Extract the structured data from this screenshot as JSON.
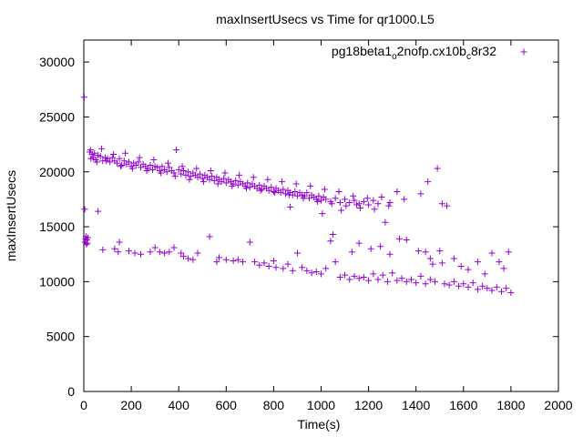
{
  "chart_data": {
    "type": "scatter",
    "title": "maxInsertUsecs vs Time for qr1000.L5",
    "xlabel": "Time(s)",
    "ylabel": "maxInsertUsecs",
    "xlim": [
      0,
      2000
    ],
    "ylim": [
      0,
      32000
    ],
    "x_ticks": [
      0,
      200,
      400,
      600,
      800,
      1000,
      1200,
      1400,
      1600,
      1800,
      2000
    ],
    "x_tick_labels": [
      "0",
      "200",
      "400",
      "600",
      "800",
      "1000",
      "1200",
      "1400",
      "1600",
      "1800",
      "2000"
    ],
    "y_ticks": [
      0,
      5000,
      10000,
      15000,
      20000,
      25000,
      30000
    ],
    "y_tick_labels": [
      "0",
      "5000",
      "10000",
      "15000",
      "20000",
      "25000",
      "30000"
    ],
    "grid": false,
    "legend_position": "top-right",
    "legend": {
      "parts": [
        {
          "text": "pg18beta1",
          "sub": false
        },
        {
          "text": "o",
          "sub": true
        },
        {
          "text": "2nofp.cx10b",
          "sub": false
        },
        {
          "text": "c",
          "sub": true
        },
        {
          "text": "8r32",
          "sub": false
        }
      ]
    },
    "marker": "+",
    "series_color": "#9400d3",
    "series": [
      {
        "name": "pg18beta1_o2nofp.cx10b_c8r32",
        "points": [
          [
            2,
            26800
          ],
          [
            4,
            16600
          ],
          [
            5,
            13600
          ],
          [
            7,
            13900
          ],
          [
            9,
            14100
          ],
          [
            11,
            13400
          ],
          [
            13,
            13800
          ],
          [
            15,
            13500
          ],
          [
            17,
            14000
          ],
          [
            60,
            16400
          ],
          [
            80,
            12900
          ],
          [
            130,
            13000
          ],
          [
            145,
            12700
          ],
          [
            150,
            13600
          ],
          [
            190,
            12800
          ],
          [
            215,
            12600
          ],
          [
            240,
            12500
          ],
          [
            280,
            12700
          ],
          [
            300,
            13100
          ],
          [
            320,
            12700
          ],
          [
            340,
            12600
          ],
          [
            360,
            12700
          ],
          [
            380,
            13100
          ],
          [
            410,
            12600
          ],
          [
            420,
            12300
          ],
          [
            440,
            12100
          ],
          [
            460,
            12000
          ],
          [
            480,
            12600
          ],
          [
            530,
            14100
          ],
          [
            560,
            11800
          ],
          [
            570,
            12200
          ],
          [
            600,
            12000
          ],
          [
            630,
            11900
          ],
          [
            650,
            12000
          ],
          [
            670,
            11800
          ],
          [
            700,
            13600
          ],
          [
            720,
            11800
          ],
          [
            740,
            11500
          ],
          [
            760,
            11700
          ],
          [
            780,
            11400
          ],
          [
            800,
            11900
          ],
          [
            810,
            11300
          ],
          [
            840,
            11200
          ],
          [
            860,
            11600
          ],
          [
            880,
            11000
          ],
          [
            900,
            12600
          ],
          [
            920,
            11300
          ],
          [
            940,
            11000
          ],
          [
            960,
            10800
          ],
          [
            980,
            10900
          ],
          [
            1000,
            10700
          ],
          [
            1020,
            11200
          ],
          [
            1040,
            13700
          ],
          [
            1050,
            14300
          ],
          [
            1060,
            11800
          ],
          [
            1080,
            10400
          ],
          [
            1100,
            10600
          ],
          [
            1120,
            10200
          ],
          [
            1140,
            10500
          ],
          [
            1160,
            10300
          ],
          [
            1180,
            10400
          ],
          [
            1200,
            10100
          ],
          [
            1220,
            10700
          ],
          [
            1240,
            10200
          ],
          [
            1260,
            10600
          ],
          [
            1280,
            10000
          ],
          [
            1300,
            10800
          ],
          [
            1320,
            10100
          ],
          [
            1340,
            10300
          ],
          [
            1360,
            10000
          ],
          [
            1380,
            10200
          ],
          [
            1400,
            9900
          ],
          [
            1420,
            10500
          ],
          [
            1440,
            9800
          ],
          [
            1460,
            10200
          ],
          [
            1480,
            10000
          ],
          [
            1500,
            12800
          ],
          [
            1520,
            9800
          ],
          [
            1540,
            9700
          ],
          [
            1560,
            10000
          ],
          [
            1580,
            9600
          ],
          [
            1600,
            9800
          ],
          [
            1620,
            9500
          ],
          [
            1640,
            9900
          ],
          [
            1660,
            9300
          ],
          [
            1680,
            9600
          ],
          [
            1700,
            9400
          ],
          [
            1720,
            9200
          ],
          [
            1740,
            9500
          ],
          [
            1760,
            9100
          ],
          [
            1780,
            9400
          ],
          [
            1800,
            9000
          ],
          [
            1130,
            12700
          ],
          [
            1160,
            13500
          ],
          [
            1210,
            13000
          ],
          [
            1250,
            13200
          ],
          [
            1290,
            12500
          ],
          [
            1330,
            13900
          ],
          [
            1360,
            13800
          ],
          [
            1410,
            12800
          ],
          [
            1440,
            12700
          ],
          [
            1460,
            12100
          ],
          [
            1470,
            11600
          ],
          [
            1510,
            11700
          ],
          [
            1560,
            12100
          ],
          [
            1590,
            11400
          ],
          [
            1620,
            11100
          ],
          [
            1660,
            11800
          ],
          [
            1690,
            10700
          ],
          [
            1720,
            12600
          ],
          [
            1750,
            11800
          ],
          [
            1770,
            11200
          ],
          [
            1790,
            12700
          ],
          [
            25,
            21800
          ],
          [
            30,
            21200
          ],
          [
            35,
            21600
          ],
          [
            40,
            21300
          ],
          [
            45,
            21700
          ],
          [
            50,
            21100
          ],
          [
            60,
            21500
          ],
          [
            70,
            21400
          ],
          [
            80,
            21000
          ],
          [
            90,
            21300
          ],
          [
            100,
            21200
          ],
          [
            110,
            20900
          ],
          [
            120,
            21300
          ],
          [
            130,
            21000
          ],
          [
            140,
            20800
          ],
          [
            150,
            21200
          ],
          [
            160,
            20600
          ],
          [
            170,
            21000
          ],
          [
            180,
            20700
          ],
          [
            190,
            20900
          ],
          [
            200,
            20500
          ],
          [
            210,
            20800
          ],
          [
            220,
            20600
          ],
          [
            230,
            20900
          ],
          [
            240,
            20400
          ],
          [
            250,
            20700
          ],
          [
            260,
            20500
          ],
          [
            270,
            20300
          ],
          [
            280,
            20600
          ],
          [
            290,
            20200
          ],
          [
            300,
            20500
          ],
          [
            310,
            20400
          ],
          [
            320,
            20100
          ],
          [
            330,
            20500
          ],
          [
            340,
            20200
          ],
          [
            350,
            20000
          ],
          [
            360,
            20400
          ],
          [
            370,
            20100
          ],
          [
            380,
            19900
          ],
          [
            390,
            22000
          ],
          [
            400,
            20200
          ],
          [
            410,
            19800
          ],
          [
            420,
            20100
          ],
          [
            430,
            19700
          ],
          [
            440,
            20000
          ],
          [
            450,
            19600
          ],
          [
            460,
            19900
          ],
          [
            470,
            19700
          ],
          [
            480,
            19500
          ],
          [
            490,
            19800
          ],
          [
            500,
            19400
          ],
          [
            510,
            19700
          ],
          [
            520,
            19500
          ],
          [
            530,
            19300
          ],
          [
            540,
            19600
          ],
          [
            550,
            19200
          ],
          [
            560,
            19500
          ],
          [
            570,
            19300
          ],
          [
            580,
            19100
          ],
          [
            590,
            19400
          ],
          [
            600,
            19000
          ],
          [
            610,
            19300
          ],
          [
            620,
            19100
          ],
          [
            630,
            18900
          ],
          [
            640,
            19200
          ],
          [
            650,
            18800
          ],
          [
            660,
            19100
          ],
          [
            670,
            18900
          ],
          [
            680,
            18700
          ],
          [
            690,
            19000
          ],
          [
            700,
            18600
          ],
          [
            710,
            18900
          ],
          [
            720,
            18700
          ],
          [
            730,
            18500
          ],
          [
            740,
            18800
          ],
          [
            750,
            18400
          ],
          [
            760,
            18700
          ],
          [
            770,
            18500
          ],
          [
            780,
            18300
          ],
          [
            790,
            18600
          ],
          [
            800,
            18200
          ],
          [
            810,
            18500
          ],
          [
            820,
            18300
          ],
          [
            830,
            18100
          ],
          [
            840,
            18400
          ],
          [
            850,
            18000
          ],
          [
            860,
            18300
          ],
          [
            870,
            18100
          ],
          [
            880,
            17900
          ],
          [
            890,
            18200
          ],
          [
            900,
            17800
          ],
          [
            910,
            18100
          ],
          [
            920,
            17900
          ],
          [
            930,
            17800
          ],
          [
            940,
            18100
          ],
          [
            950,
            17600
          ],
          [
            960,
            17900
          ],
          [
            970,
            17700
          ],
          [
            980,
            17500
          ],
          [
            990,
            17800
          ],
          [
            1000,
            17400
          ],
          [
            1010,
            17700
          ],
          [
            1020,
            17500
          ],
          [
            1040,
            17300
          ],
          [
            1060,
            17600
          ],
          [
            1080,
            17200
          ],
          [
            1100,
            17500
          ],
          [
            1120,
            17200
          ],
          [
            1140,
            17400
          ],
          [
            1160,
            17100
          ],
          [
            1180,
            17300
          ],
          [
            1200,
            17000
          ],
          [
            1220,
            17400
          ],
          [
            1240,
            17100
          ],
          [
            1270,
            15400
          ],
          [
            1290,
            17200
          ],
          [
            1320,
            18200
          ],
          [
            1350,
            17500
          ],
          [
            1420,
            18000
          ],
          [
            1450,
            19100
          ],
          [
            1490,
            20300
          ],
          [
            1510,
            17100
          ],
          [
            1530,
            16900
          ],
          [
            28,
            22000
          ],
          [
            55,
            20900
          ],
          [
            75,
            22100
          ],
          [
            95,
            21000
          ],
          [
            125,
            21600
          ],
          [
            155,
            20500
          ],
          [
            175,
            21700
          ],
          [
            205,
            20300
          ],
          [
            235,
            21300
          ],
          [
            265,
            20100
          ],
          [
            295,
            21100
          ],
          [
            325,
            19900
          ],
          [
            355,
            20800
          ],
          [
            385,
            19600
          ],
          [
            415,
            20500
          ],
          [
            445,
            19300
          ],
          [
            475,
            20300
          ],
          [
            505,
            19100
          ],
          [
            535,
            20100
          ],
          [
            565,
            18900
          ],
          [
            595,
            19900
          ],
          [
            625,
            18700
          ],
          [
            655,
            19700
          ],
          [
            685,
            18500
          ],
          [
            715,
            19500
          ],
          [
            745,
            18300
          ],
          [
            775,
            19300
          ],
          [
            805,
            18100
          ],
          [
            835,
            19100
          ],
          [
            865,
            17900
          ],
          [
            895,
            18900
          ],
          [
            925,
            17600
          ],
          [
            955,
            18700
          ],
          [
            985,
            17300
          ],
          [
            1015,
            18400
          ],
          [
            1045,
            17100
          ],
          [
            1075,
            18200
          ],
          [
            1105,
            16900
          ],
          [
            1135,
            17800
          ],
          [
            1165,
            16700
          ],
          [
            1195,
            17600
          ],
          [
            1225,
            16600
          ],
          [
            1255,
            17700
          ],
          [
            1285,
            16900
          ],
          [
            870,
            16800
          ],
          [
            1150,
            17000
          ],
          [
            1005,
            16200
          ],
          [
            1085,
            16500
          ]
        ]
      }
    ]
  }
}
